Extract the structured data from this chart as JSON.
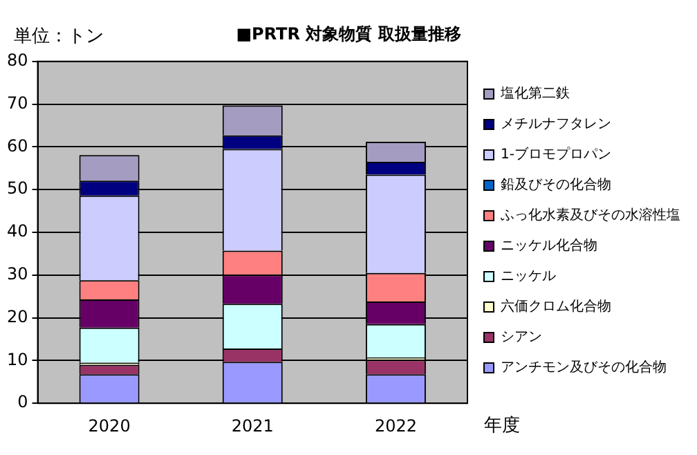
{
  "chart_data": {
    "type": "bar",
    "title": "■PRTR 対象物質 取扱量推移",
    "ylabel": "単位：トン",
    "xlabel": "年度",
    "categories": [
      "2020",
      "2021",
      "2022"
    ],
    "stacked": true,
    "ylim": [
      0,
      80
    ],
    "yticks": [
      0,
      10,
      20,
      30,
      40,
      50,
      60,
      70,
      80
    ],
    "grid": "y",
    "legend": "right",
    "series": [
      {
        "name": "アンチモン及びその化合物",
        "color": "#9999ff",
        "values": [
          6.8,
          9.7,
          6.8
        ]
      },
      {
        "name": "シアン",
        "color": "#993366",
        "values": [
          2.2,
          3.1,
          3.4
        ]
      },
      {
        "name": "六価クロム化合物",
        "color": "#ffffcc",
        "values": [
          0.5,
          0,
          0.5
        ]
      },
      {
        "name": "ニッケル",
        "color": "#ccffff",
        "values": [
          8.2,
          10.5,
          7.8
        ]
      },
      {
        "name": "ニッケル化合物",
        "color": "#660066",
        "values": [
          6.6,
          6.8,
          5.3
        ]
      },
      {
        "name": "ふっ化水素及びその水溶性塩",
        "color": "#ff8080",
        "values": [
          4.5,
          5.6,
          6.7
        ]
      },
      {
        "name": "鉛及びその化合物",
        "color": "#0066cc",
        "values": [
          0,
          0,
          0
        ]
      },
      {
        "name": "1-ブロモプロパン",
        "color": "#ccccff",
        "values": [
          19.8,
          23.8,
          23.0
        ]
      },
      {
        "name": "メチルナフタレン",
        "color": "#000080",
        "values": [
          3.5,
          3.2,
          3.0
        ]
      },
      {
        "name": "塩化第二鉄",
        "color": "#a59cc2",
        "values": [
          6.0,
          7.0,
          4.7
        ]
      }
    ]
  }
}
